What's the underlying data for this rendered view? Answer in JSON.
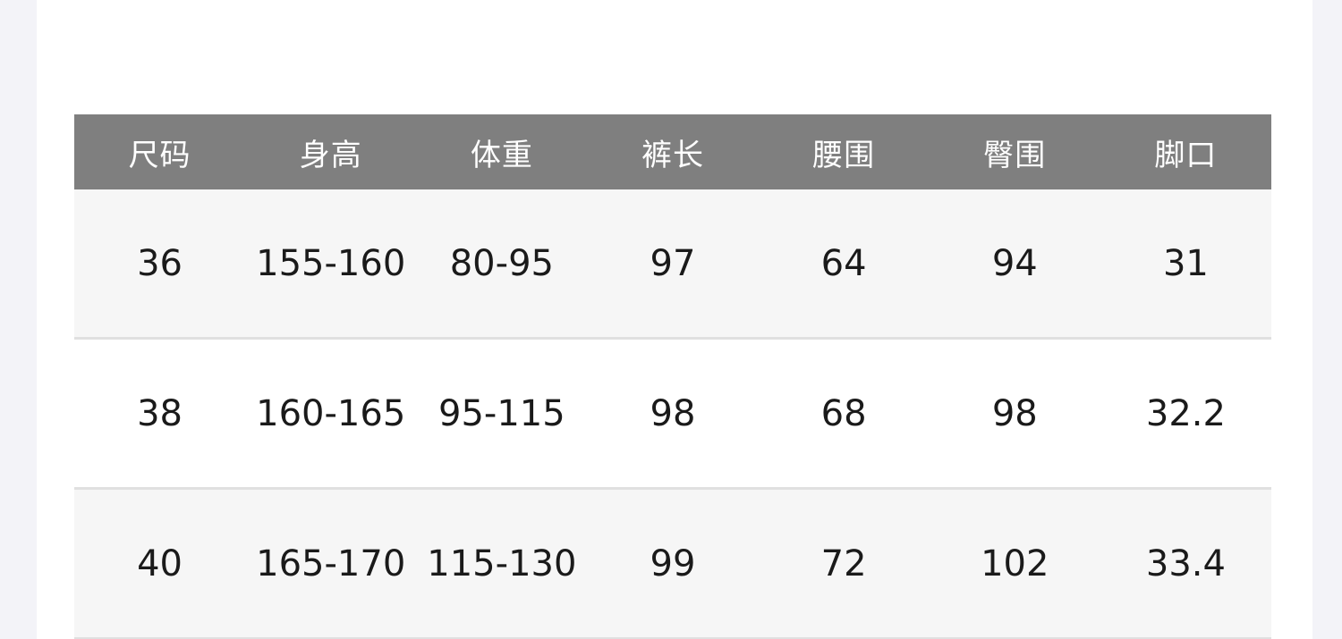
{
  "colors": {
    "header_background": "#7f7f7f",
    "header_text": "#ffffff",
    "row_alt_background": "#f6f6f6",
    "row_background": "#ffffff",
    "row_divider": "#e0e0e0",
    "cell_text": "#1a1a1a",
    "page_background": "#ffffff",
    "gutter_background": "#f3f3f8"
  },
  "chart_data": {
    "type": "table",
    "title": "",
    "columns": [
      "尺码",
      "身高",
      "体重",
      "裤长",
      "腰围",
      "臀围",
      "脚口"
    ],
    "rows": [
      [
        "36",
        "155-160",
        "80-95",
        "97",
        "64",
        "94",
        "31"
      ],
      [
        "38",
        "160-165",
        "95-115",
        "98",
        "68",
        "98",
        "32.2"
      ],
      [
        "40",
        "165-170",
        "115-130",
        "99",
        "72",
        "102",
        "33.4"
      ]
    ],
    "layout_hints": {
      "columns_equal_width": true,
      "header_style": "solid gray band, white text",
      "row_striping": [
        "alt",
        "plain",
        "alt"
      ],
      "grid_lines": "horizontal only",
      "last_row_partially_cut_by_viewport": true
    }
  }
}
